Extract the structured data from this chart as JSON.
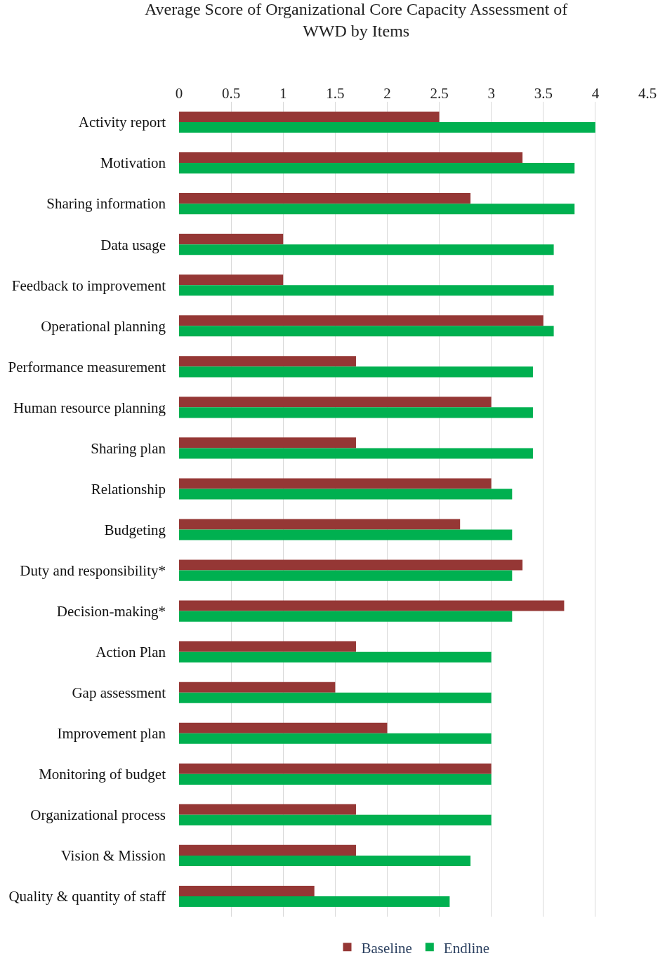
{
  "chart_data": {
    "type": "bar",
    "orientation": "horizontal",
    "title": "Average Score of Organizational Core Capacity Assessment of WWD by Items",
    "categories": [
      "Activity report",
      "Motivation",
      "Sharing information",
      "Data usage",
      "Feedback to improvement",
      "Operational planning",
      "Performance measurement",
      "Human resource planning",
      "Sharing plan",
      "Relationship",
      "Budgeting",
      "Duty and responsibility*",
      "Decision-making*",
      "Action Plan",
      "Gap assessment",
      "Improvement plan",
      "Monitoring of budget",
      "Organizational process",
      "Vision & Mission",
      "Quality & quantity of staff"
    ],
    "series": [
      {
        "name": "Baseline",
        "color": "#953735",
        "values": [
          2.5,
          3.3,
          2.8,
          1.0,
          1.0,
          3.5,
          1.7,
          3.0,
          1.7,
          3.0,
          2.7,
          3.3,
          3.7,
          1.7,
          1.5,
          2.0,
          3.0,
          1.7,
          1.7,
          1.3
        ]
      },
      {
        "name": "Endline",
        "color": "#00b050",
        "values": [
          4.0,
          3.8,
          3.8,
          3.6,
          3.6,
          3.6,
          3.4,
          3.4,
          3.4,
          3.2,
          3.2,
          3.2,
          3.2,
          3.0,
          3.0,
          3.0,
          3.0,
          3.0,
          2.8,
          2.6
        ]
      }
    ],
    "xlim": [
      0,
      4.5
    ],
    "xticks": [
      0,
      0.5,
      1,
      1.5,
      2,
      2.5,
      3,
      3.5,
      4,
      4.5
    ],
    "grid": "x",
    "legend": "bottom"
  }
}
